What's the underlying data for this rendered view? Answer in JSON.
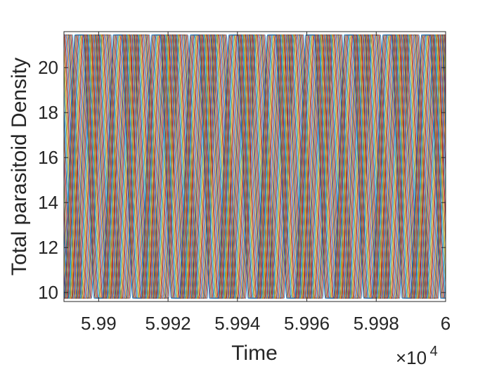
{
  "chart_data": {
    "type": "line",
    "title": "",
    "xlabel": "Time",
    "ylabel": "Total parasitoid Density",
    "x_exponent_label": {
      "base": "×10",
      "power": "4"
    },
    "xlim": [
      59890,
      60000
    ],
    "ylim": [
      9.6,
      21.6
    ],
    "xticks": [
      59900,
      59920,
      59940,
      59960,
      59980,
      60000
    ],
    "xtick_labels": [
      "5.99",
      "5.992",
      "5.994",
      "5.996",
      "5.998",
      "6"
    ],
    "yticks": [
      10,
      12,
      14,
      16,
      18,
      20
    ],
    "ytick_labels": [
      "10",
      "12",
      "14",
      "16",
      "18",
      "20"
    ],
    "grid": false,
    "legend": "none",
    "series_count": 50,
    "oscillation": {
      "period": 11.1,
      "min": 9.75,
      "max": 21.45,
      "phase_spread": 0.72
    },
    "colors": [
      "#0072BD",
      "#D95319",
      "#EDB120",
      "#7E2F8E",
      "#77AC30",
      "#4DBEEE",
      "#A2142F"
    ]
  }
}
